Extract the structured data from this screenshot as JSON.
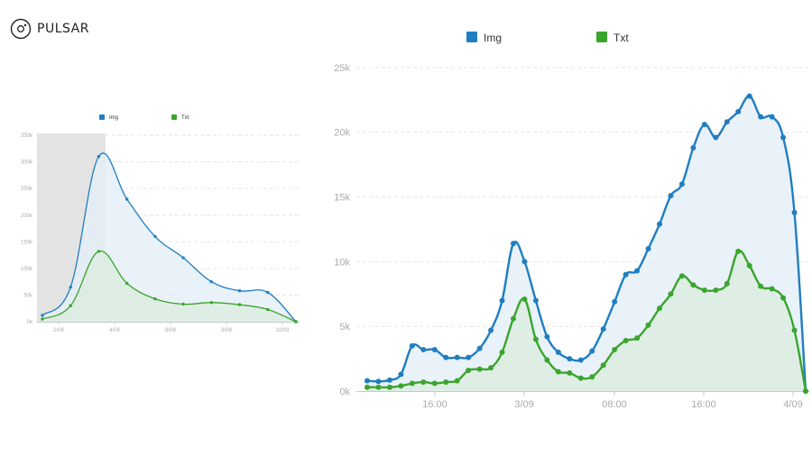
{
  "app": {
    "logo_text": "PULSAR",
    "logo_icon": "pulsar-logo-icon"
  },
  "colors": {
    "img": "#1f7ec1",
    "txt": "#3aa52d",
    "img_fill": "#e4eef7",
    "txt_fill": "#dceee0",
    "grid": "#e6e6e6",
    "selection": "#dedede"
  },
  "chart_data": [
    {
      "type": "area",
      "title": "",
      "legend_position": "top",
      "grid": true,
      "selection_range": [
        "1/09",
        "3/09 14:00"
      ],
      "x_ticks": [
        "2/09",
        "4/09",
        "6/09",
        "8/09",
        "10/09"
      ],
      "x": [
        "1/09 12:00",
        "2/09 12:00",
        "3/09 12:00",
        "4/09 12:00",
        "5/09 12:00",
        "6/09 12:00",
        "7/09 12:00",
        "8/09 12:00",
        "9/09 12:00",
        "10/09 12:00"
      ],
      "ylim": [
        0,
        350000
      ],
      "y_ticks": [
        "0k",
        "50k",
        "100k",
        "150k",
        "200k",
        "250k",
        "300k",
        "350k"
      ],
      "series": [
        {
          "name": "Img",
          "values": [
            12000,
            65000,
            310000,
            230000,
            160000,
            120000,
            75000,
            58000,
            55000,
            0
          ]
        },
        {
          "name": "Txt",
          "values": [
            5000,
            30000,
            132000,
            72000,
            43000,
            33000,
            36000,
            32000,
            23000,
            0
          ]
        }
      ]
    },
    {
      "type": "area",
      "title": "",
      "legend_position": "top",
      "grid": true,
      "x_ticks": [
        "16:00",
        "3/09",
        "08:00",
        "16:00",
        "4/09"
      ],
      "ylim": [
        0,
        25000
      ],
      "y_ticks": [
        "0k",
        "5k",
        "10k",
        "15k",
        "20k",
        "25k"
      ],
      "series": [
        {
          "name": "Img",
          "values": [
            800,
            750,
            850,
            1300,
            3500,
            3200,
            3200,
            2600,
            2600,
            2600,
            3300,
            4700,
            7000,
            11400,
            10000,
            7000,
            4200,
            3000,
            2500,
            2400,
            3100,
            4800,
            6900,
            9000,
            9300,
            11000,
            12900,
            15100,
            16000,
            18800,
            20600,
            19600,
            20800,
            21600,
            22800,
            21200,
            21200,
            19600,
            13800,
            0
          ]
        },
        {
          "name": "Txt",
          "values": [
            300,
            300,
            300,
            400,
            600,
            700,
            600,
            700,
            800,
            1600,
            1700,
            1800,
            3000,
            5600,
            7100,
            4000,
            2400,
            1500,
            1400,
            1000,
            1100,
            2000,
            3200,
            3900,
            4100,
            5100,
            6400,
            7500,
            8900,
            8200,
            7800,
            7800,
            8300,
            10800,
            9700,
            8100,
            7900,
            7200,
            4700,
            0
          ]
        }
      ]
    }
  ]
}
